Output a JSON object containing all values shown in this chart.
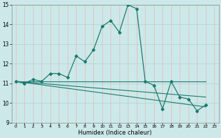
{
  "xlabel": "Humidex (Indice chaleur)",
  "xlim": [
    -0.5,
    23.5
  ],
  "ylim": [
    9,
    15
  ],
  "yticks": [
    9,
    10,
    11,
    12,
    13,
    14,
    15
  ],
  "xticks": [
    0,
    1,
    2,
    3,
    4,
    5,
    6,
    7,
    8,
    9,
    10,
    11,
    12,
    13,
    14,
    15,
    16,
    17,
    18,
    19,
    20,
    21,
    22,
    23
  ],
  "bg_color": "#cce8e8",
  "line_color": "#1a7a6e",
  "main_line_x": [
    0,
    1,
    2,
    3,
    4,
    5,
    6,
    7,
    8,
    9,
    10,
    11,
    12,
    13,
    14,
    15,
    16,
    17,
    18,
    19,
    20,
    21,
    22
  ],
  "main_line_y": [
    11.1,
    11.0,
    11.2,
    11.1,
    11.5,
    11.5,
    11.3,
    12.4,
    12.1,
    12.7,
    13.9,
    14.2,
    13.6,
    15.0,
    14.8,
    11.1,
    10.9,
    9.7,
    11.1,
    10.3,
    10.2,
    9.6,
    9.9
  ],
  "trend1_x": [
    0,
    22
  ],
  "trend1_y": [
    11.1,
    11.1
  ],
  "trend2_x": [
    0,
    22
  ],
  "trend2_y": [
    11.1,
    10.3
  ],
  "trend3_x": [
    0,
    22
  ],
  "trend3_y": [
    11.1,
    9.8
  ],
  "vgrid_color": "#e8b8b8",
  "hgrid_color": "#aad4d4"
}
